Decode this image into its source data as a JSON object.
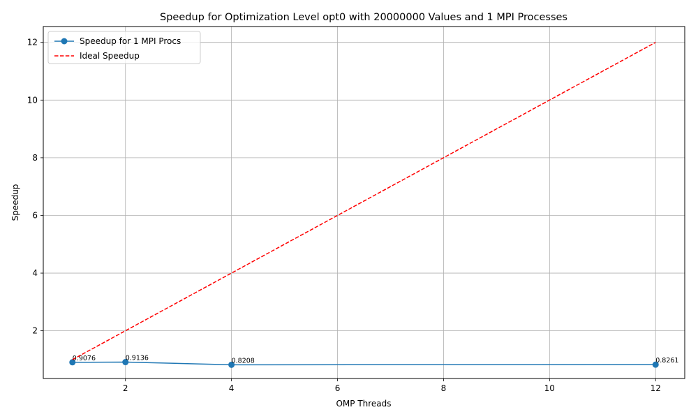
{
  "chart_data": {
    "type": "line",
    "title": "Speedup for Optimization Level opt0 with 20000000 Values and 1 MPI Processes",
    "xlabel": "OMP Threads",
    "ylabel": "Speedup",
    "xlim": [
      0.45,
      12.55
    ],
    "ylim": [
      0.345,
      12.55
    ],
    "xticks": [
      2,
      4,
      6,
      8,
      10,
      12
    ],
    "yticks": [
      2,
      4,
      6,
      8,
      10,
      12
    ],
    "grid": true,
    "legend_position": "upper-left",
    "series": [
      {
        "name": "Speedup for 1 MPI Procs",
        "color": "#1f77b4",
        "style": "solid",
        "marker": "circle",
        "x": [
          1,
          2,
          4,
          12
        ],
        "y": [
          0.9076,
          0.9136,
          0.8208,
          0.8261
        ],
        "labels": [
          "0.9076",
          "0.9136",
          "0.8208",
          "0.8261"
        ]
      },
      {
        "name": "Ideal Speedup",
        "color": "#ff0000",
        "style": "dashed",
        "marker": "none",
        "x": [
          1,
          12
        ],
        "y": [
          1,
          12
        ]
      }
    ]
  }
}
